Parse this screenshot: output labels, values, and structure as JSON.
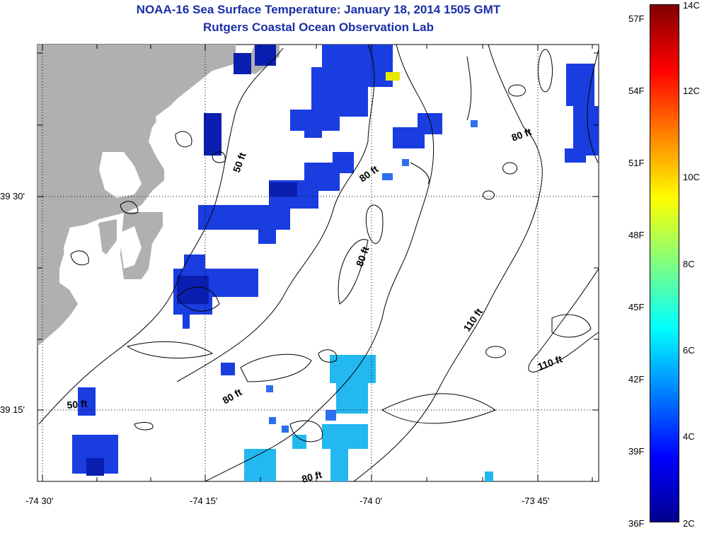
{
  "title": "NOAA-16 Sea Surface Temperature:  January 18, 2014 1505 GMT",
  "subtitle": "Rutgers Coastal Ocean Observation Lab",
  "axes": {
    "x_ticks": [
      "-74 30'",
      "-74 15'",
      "-74 0'",
      "-73 45'"
    ],
    "y_ticks": [
      "39 30'",
      "39 15'"
    ]
  },
  "contour_labels": [
    "50 ft",
    "80 ft",
    "80 ft",
    "80 ft",
    "80 ft",
    "80 ft",
    "110 ft",
    "110 ft",
    "50 ft"
  ],
  "colorbar": {
    "fahrenheit_labels": [
      "57F",
      "54F",
      "51F",
      "48F",
      "45F",
      "42F",
      "39F",
      "36F"
    ],
    "celsius_labels": [
      "14C",
      "12C",
      "10C",
      "8C",
      "6C",
      "4C",
      "2C"
    ],
    "gradient": [
      "#7f0000",
      "#ff0000",
      "#ff8000",
      "#ffff00",
      "#80ff80",
      "#00ffff",
      "#0080ff",
      "#0000ff",
      "#00008f"
    ]
  },
  "colors": {
    "land": "#b0b0b0",
    "ocean": "#ffffff",
    "sst_deep_blue": "#0a1fd0",
    "sst_blue": "#1e4fe8",
    "sst_cyan": "#23b8ef",
    "sst_yellow": "#e8e800"
  }
}
